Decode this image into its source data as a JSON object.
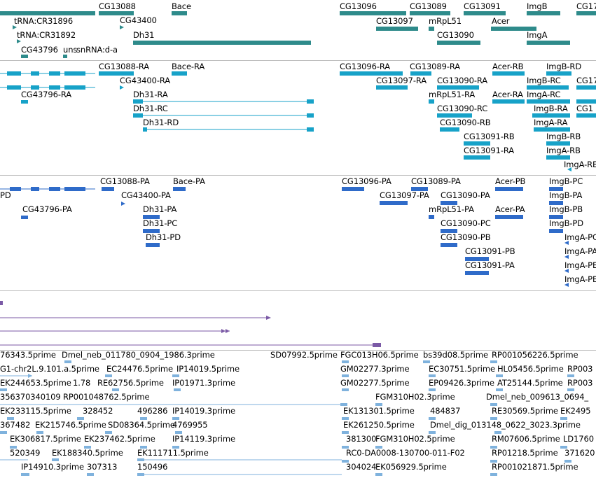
{
  "colors": {
    "gene": "#2e8b8b",
    "transcript": "#17a2c8",
    "protein": "#2f6bc9",
    "feature": "#7b5aa6",
    "est": "#7fb2dd",
    "separator": "#bbbbbb"
  },
  "panels": {
    "genes": {
      "labels": [
        "CG13088",
        "Bace",
        "CG13096",
        "CG13089",
        "CG13091",
        "ImgB",
        "CG17",
        "tRNA:CR31896",
        "CG43400",
        "CG13097",
        "mRpL51",
        "Acer",
        "tRNA:CR31892",
        "Dh31",
        "CG13090",
        "ImgA",
        "CG43796",
        "snRNA:d-a",
        "uns"
      ]
    },
    "transcripts": {
      "labels": [
        "CG13088-RA",
        "Bace-RA",
        "CG13096-RA",
        "CG13089-RA",
        "Acer-RB",
        "ImgB-RD",
        "CG43400-RA",
        "CG13097-RA",
        "CG13090-RA",
        "ImgB-RC",
        "CG17",
        "CG43796-RA",
        "Dh31-RA",
        "mRpL51-RA",
        "Acer-RA",
        "ImgA-RC",
        "Dh31-RC",
        "CG13090-RC",
        "ImgB-RA",
        "Dh31-RD",
        "CG13090-RB",
        "ImgA-RA",
        "CG13091-RB",
        "ImgB-RB",
        "CG13091-RA",
        "ImgA-RB",
        "ImgA-RE",
        "CG1"
      ]
    },
    "proteins": {
      "labels": [
        "CG13088-PA",
        "Bace-PA",
        "CG13096-PA",
        "CG13089-PA",
        "Acer-PB",
        "ImgB-PC",
        "PD",
        "CG43400-PA",
        "CG13097-PA",
        "CG13090-PA",
        "ImgB-PA",
        "CG43796-PA",
        "Dh31-PA",
        "mRpL51-PA",
        "Acer-PA",
        "ImgB-PB",
        "Dh31-PC",
        "CG13090-PC",
        "ImgB-PD",
        "Dh31-PD",
        "CG13090-PB",
        "ImgA-PC",
        "CG13091-PB",
        "ImgA-PA",
        "CG13091-PA",
        "ImgA-PE",
        "ImgA-PB"
      ]
    },
    "ests": {
      "labels": [
        "76343.5prime",
        "Dmel_neb_011780_0904_1986.3prime",
        "SD07992.5prime",
        "FGC013H06.5prime",
        "bs39d08.5prime",
        "RP001056226.5prime",
        "G1-chr2L.9.101.a.5prime",
        "EC24476.5prime",
        "IP14019.5prime",
        "GM02277.3prime",
        "EC30751.5prime",
        "HL05456.5prime",
        "RP003",
        "EK244653.5prime",
        "1.78",
        "RE62756.5prime",
        "IP01971.3prime",
        "GM02277.5prime",
        "EP09426.3prime",
        "AT25144.5prime",
        "RP003",
        "356370340109",
        "RP001048762.5prime",
        "FGM310H02.3prime",
        "Dmel_neb_009613_0694_",
        "EK233115.5prime",
        "328452",
        "496286",
        "IP14019.3prime",
        "EK131301.5prime",
        "484837",
        "RE30569.5prime",
        "EK2495",
        "367482",
        "EK215746.5prime",
        "SD08364.5prime",
        "4769955",
        "EK261250.5prime",
        "Dmel_dig_013148_0622_3023.3prime",
        "EK306817.5prime",
        "EK237462.5prime",
        "IP14119.3prime",
        "381300",
        "FGM310H02.5prime",
        "RM07606.5prime",
        "LD1760",
        "520349",
        "EK188340.5prime",
        "EK111711.5prime",
        "RC0-DA0008-130700-011-F02",
        "RP01218.5prime",
        "371620",
        "IP14910.3prime",
        "307313",
        "150496",
        "304024",
        "EK056929.5prime",
        "RP001021871.5prime"
      ]
    }
  }
}
